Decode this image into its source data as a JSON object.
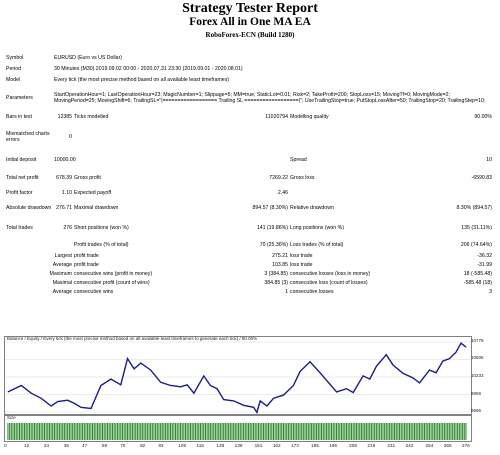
{
  "header": {
    "title": "Strategy Tester Report",
    "subtitle": "Forex All in One MA EA",
    "broker": "RoboForex-ECN (Build 1280)"
  },
  "rows": {
    "symbol": {
      "label": "Symbol",
      "value": "EURUSD (Euro vs US Dollar)"
    },
    "period": {
      "label": "Period",
      "value": "30 Minutes (M30) 2019.09.02 00:00 - 2020.07.31 23:30 (2019.09.01 - 2020.08.01)"
    },
    "model": {
      "label": "Model",
      "value": "Every tick (the most precise method based on all available least timeframes)"
    },
    "parameters": {
      "label": "Parameters",
      "value": "StartOperationHour=1; LastOperationHour=23; MagicNumber=1; Slippage=5; MM=true; StaticLot=0.01; Risk=2; TakeProfit=200; StopLoss=15; MovingTf=0; MovingMode=2; MovingPeriod=25; MovingShift=6; TrailingSL=\"|================== Trailing SL ==================|\"; UseTrailingStop=true; PutStopLossAfter=50; TrailingStop=20; TrailingStep=10;"
    },
    "bars": {
      "label": "Bars in test",
      "value": "12385",
      "l2": "Ticks modelled",
      "v2": "11020794",
      "l3": "Modelling quality",
      "v3": "90.00%"
    },
    "mismatched": {
      "label": "Mismatched charts errors",
      "value": "0"
    },
    "deposit": {
      "label": "Initial deposit",
      "value": "10000.00",
      "l3": "Spread",
      "v3": "10"
    },
    "net_profit": {
      "label": "Total net profit",
      "value": "678.39",
      "l2": "Gross profit",
      "v2": "7269.22",
      "l3": "Gross loss",
      "v3": "-6590.83"
    },
    "profit_factor": {
      "label": "Profit factor",
      "value": "1.10",
      "l2": "Expected payoff",
      "v2": "2.46"
    },
    "abs_dd": {
      "label": "Absolute drawdown",
      "value": "276.71",
      "l2": "Maximal drawdown",
      "v2": "894.57 (8.30%)",
      "l3": "Relative drawdown",
      "v3": "8.30% (894.57)"
    },
    "total_trades": {
      "label": "Total trades",
      "value": "276",
      "l2": "Short positions (won %)",
      "v2": "141 (19.86%)",
      "l3": "Long positions (won %)",
      "v3": "135 (31.11%)"
    },
    "profit_trades": {
      "l2": "Profit trades (% of total)",
      "v2": "70 (25.36%)",
      "l3": "Loss trades (% of total)",
      "v3": "206 (74.64%)"
    },
    "largest": {
      "l1": "Largest",
      "l2": "profit trade",
      "v2": "275.21",
      "l3": "loss trade",
      "v3": "-36.32"
    },
    "average": {
      "l1": "Average",
      "l2": "profit trade",
      "v2": "103.85",
      "l3": "loss trade",
      "v3": "-31.99"
    },
    "maximum": {
      "l1": "Maximum",
      "l2": "consecutive wins (profit in money)",
      "v2": "3 (384.85)",
      "l3": "consecutive losses (loss in money)",
      "v3": "18 (-585.48)"
    },
    "maximal": {
      "l1": "Maximal",
      "l2": "consecutive profit (count of wins)",
      "v2": "384.85 (3)",
      "l3": "consecutive loss (count of losses)",
      "v3": "-585.48 (18)"
    },
    "average2": {
      "l1": "Average",
      "l2": "consecutive wins",
      "v2": "1",
      "l3": "consecutive losses",
      "v3": "3"
    }
  },
  "chart_data": {
    "type": "line",
    "title": "Balance / Equity / Every tick (the most precise method based on all available least timeframes to generate each tick) / 90.00%",
    "y_ticks": [
      "10779",
      "10506",
      "10233",
      "9959",
      "9686"
    ],
    "ylim": [
      9686,
      10779
    ],
    "x_ticks": [
      "0",
      "12",
      "24",
      "36",
      "47",
      "59",
      "70",
      "82",
      "93",
      "105",
      "116",
      "128",
      "139",
      "151",
      "162",
      "173",
      "185",
      "196",
      "208",
      "219",
      "231",
      "242",
      "254",
      "265",
      "276"
    ],
    "x": [
      0,
      8,
      14,
      20,
      26,
      30,
      36,
      40,
      44,
      50,
      56,
      62,
      68,
      72,
      76,
      80,
      86,
      92,
      98,
      104,
      108,
      112,
      118,
      122,
      126,
      130,
      136,
      142,
      148,
      150,
      152,
      156,
      160,
      166,
      172,
      176,
      182,
      188,
      192,
      198,
      204,
      208,
      214,
      218,
      222,
      228,
      232,
      238,
      244,
      248,
      254,
      258,
      262,
      266,
      270,
      273,
      276
    ],
    "values": [
      10000,
      10100,
      9980,
      9900,
      9780,
      9850,
      9870,
      9820,
      9760,
      9740,
      10100,
      10200,
      10110,
      10520,
      10360,
      10450,
      10340,
      10150,
      10100,
      10080,
      10110,
      9980,
      10250,
      10100,
      10050,
      9880,
      9860,
      9790,
      9760,
      9680,
      9860,
      9780,
      9900,
      9950,
      10100,
      10320,
      10470,
      10300,
      10180,
      10000,
      10050,
      9990,
      10250,
      10200,
      10400,
      10580,
      10420,
      10290,
      10220,
      10140,
      10340,
      10300,
      10480,
      10520,
      10620,
      10760,
      10700
    ],
    "volume_label": "Size"
  }
}
